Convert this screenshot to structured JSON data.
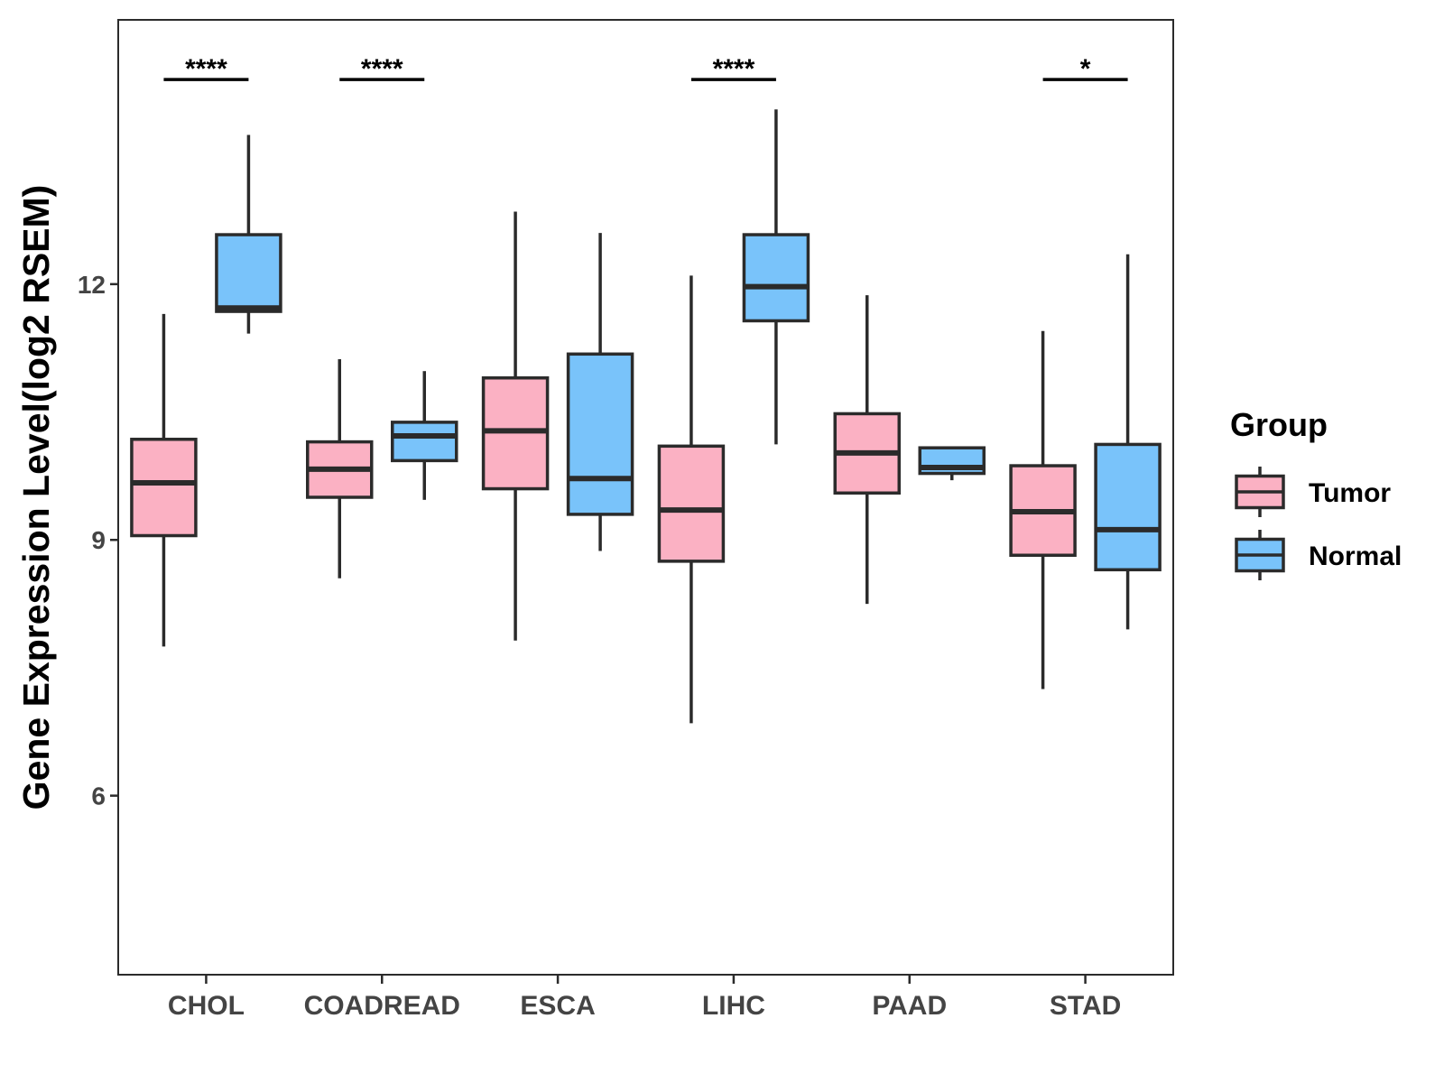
{
  "chart_data": {
    "type": "boxplot",
    "title": "",
    "xlabel": "",
    "ylabel": "Gene Expression Level(log2 RSEM)",
    "ylim": [
      3.9,
      15.1
    ],
    "yticks": [
      6,
      9,
      12
    ],
    "grid": false,
    "categories": [
      "CHOL",
      "COADREAD",
      "ESCA",
      "LIHC",
      "PAAD",
      "STAD"
    ],
    "legend": {
      "title": "Group",
      "position": "right",
      "entries": [
        "Tumor",
        "Normal"
      ]
    },
    "colors": {
      "Tumor": "#FBB1C3",
      "Normal": "#79C3FA",
      "outline": "#2b2b2b"
    },
    "series": [
      {
        "name": "Tumor",
        "boxes": [
          {
            "category": "CHOL",
            "min": 7.75,
            "q1": 9.05,
            "median": 9.67,
            "q3": 10.18,
            "max": 11.65
          },
          {
            "category": "COADREAD",
            "min": 8.55,
            "q1": 9.5,
            "median": 9.83,
            "q3": 10.15,
            "max": 11.12
          },
          {
            "category": "ESCA",
            "min": 7.82,
            "q1": 9.6,
            "median": 10.28,
            "q3": 10.9,
            "max": 12.85
          },
          {
            "category": "LIHC",
            "min": 6.85,
            "q1": 8.75,
            "median": 9.35,
            "q3": 10.1,
            "max": 12.1
          },
          {
            "category": "PAAD",
            "min": 8.25,
            "q1": 9.55,
            "median": 10.02,
            "q3": 10.48,
            "max": 11.87
          },
          {
            "category": "STAD",
            "min": 7.25,
            "q1": 8.82,
            "median": 9.33,
            "q3": 9.87,
            "max": 11.45
          }
        ]
      },
      {
        "name": "Normal",
        "boxes": [
          {
            "category": "CHOL",
            "min": 11.42,
            "q1": 11.68,
            "median": 11.72,
            "q3": 12.58,
            "max": 13.75
          },
          {
            "category": "COADREAD",
            "min": 9.47,
            "q1": 9.93,
            "median": 10.22,
            "q3": 10.38,
            "max": 10.98
          },
          {
            "category": "ESCA",
            "min": 8.87,
            "q1": 9.3,
            "median": 9.72,
            "q3": 11.18,
            "max": 12.6
          },
          {
            "category": "LIHC",
            "min": 10.12,
            "q1": 11.57,
            "median": 11.97,
            "q3": 12.58,
            "max": 14.05
          },
          {
            "category": "PAAD",
            "min": 9.7,
            "q1": 9.78,
            "median": 9.85,
            "q3": 10.08,
            "max": 10.08
          },
          {
            "category": "STAD",
            "min": 7.95,
            "q1": 8.65,
            "median": 9.12,
            "q3": 10.12,
            "max": 12.35
          }
        ]
      }
    ],
    "annotations": [
      {
        "category": "CHOL",
        "label": "****",
        "y": 14.4
      },
      {
        "category": "COADREAD",
        "label": "****",
        "y": 14.4
      },
      {
        "category": "LIHC",
        "label": "****",
        "y": 14.4
      },
      {
        "category": "STAD",
        "label": "*",
        "y": 14.4
      }
    ]
  }
}
